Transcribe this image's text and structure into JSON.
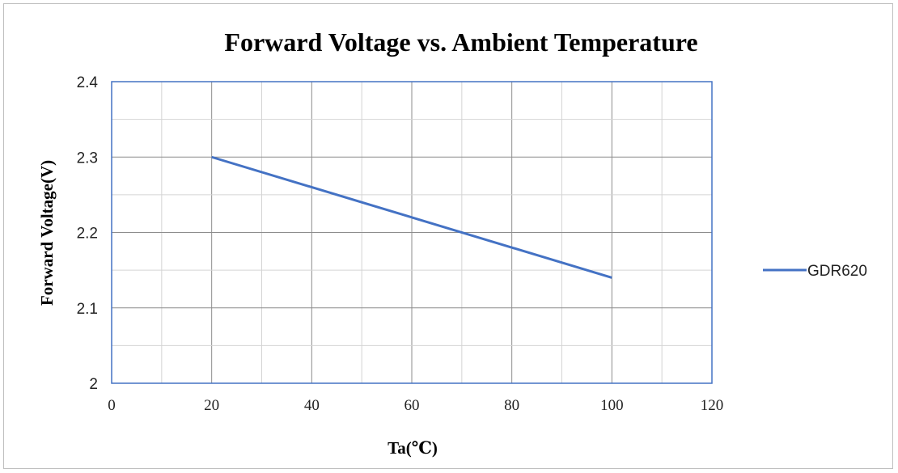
{
  "chart_data": {
    "type": "line",
    "title": "Forward Voltage vs. Ambient Temperature",
    "xlabel": "Ta(℃)",
    "ylabel": "Forward  Voltage(V)",
    "xlim": [
      0,
      120
    ],
    "ylim": [
      2,
      2.4
    ],
    "xticks": [
      "0",
      "20",
      "40",
      "60",
      "80",
      "100",
      "120"
    ],
    "yticks": [
      "2",
      "2.1",
      "2.2",
      "2.3",
      "2.4"
    ],
    "grid": true,
    "legend_position": "right",
    "series": [
      {
        "name": "GDR620",
        "color": "#4472C4",
        "x": [
          20,
          100
        ],
        "y": [
          2.3,
          2.14
        ]
      }
    ]
  }
}
